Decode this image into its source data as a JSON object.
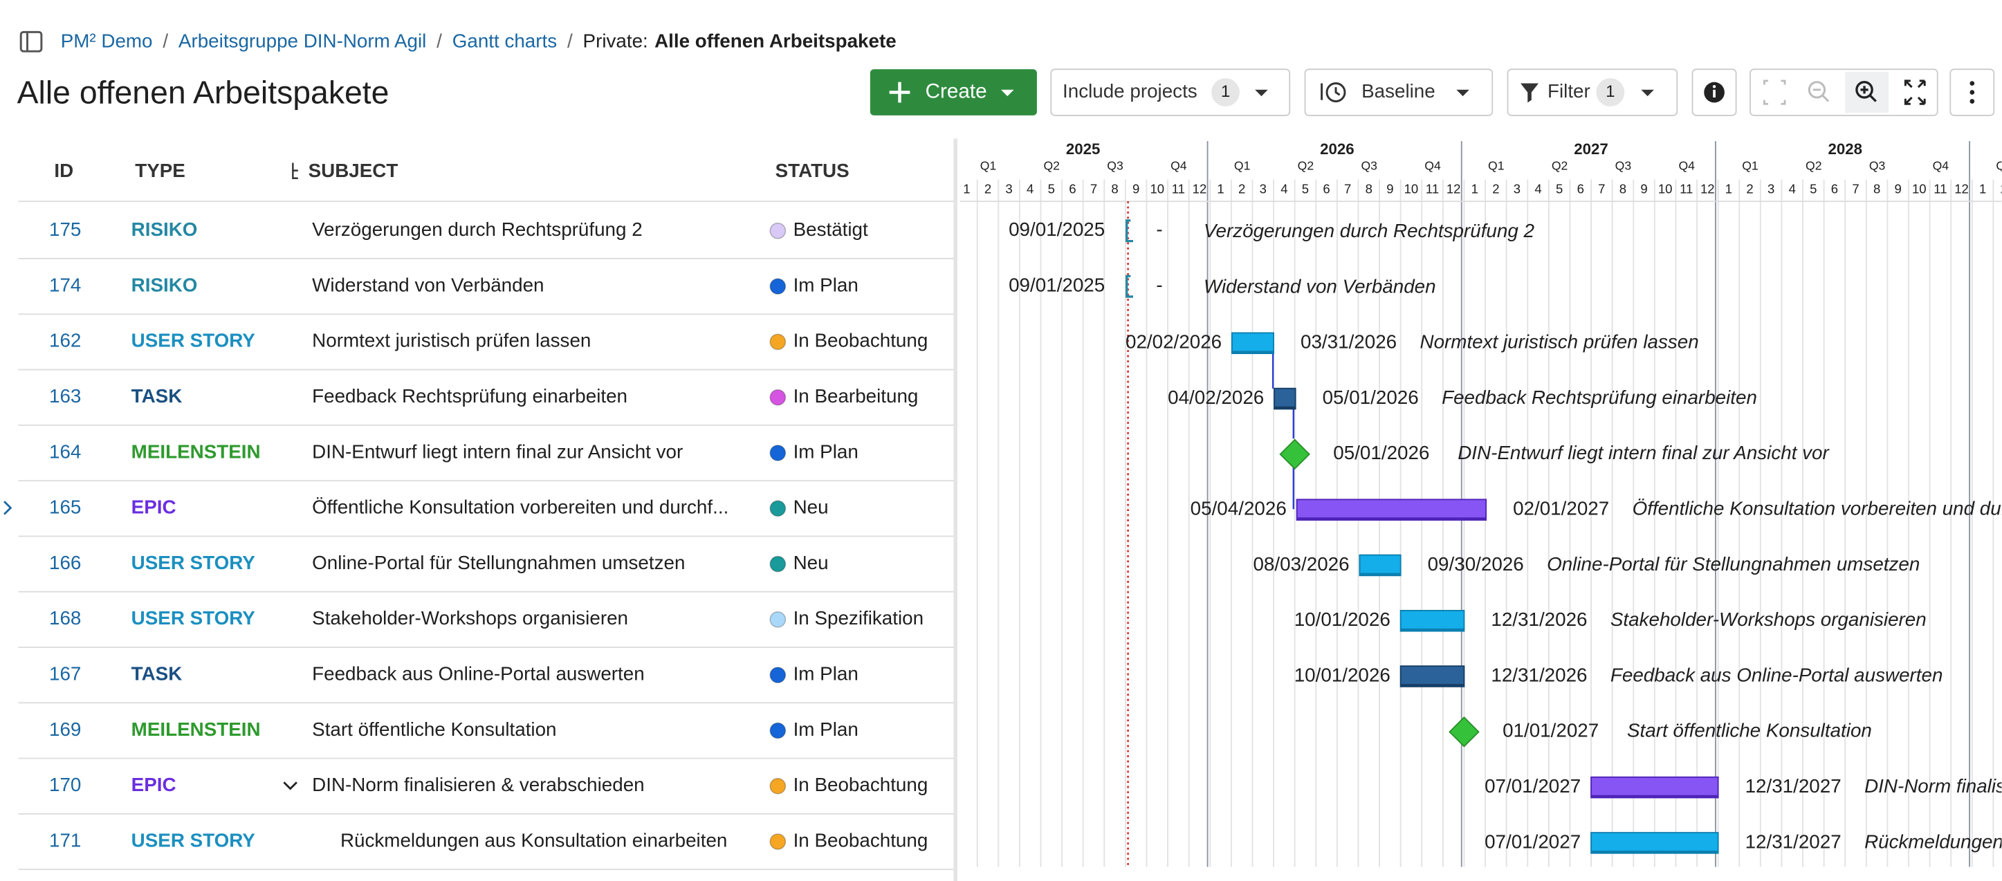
{
  "breadcrumb": [
    "PM² Demo",
    "Arbeitsgruppe DIN-Norm Agil",
    "Gantt charts"
  ],
  "breadcrumb_separator": "/",
  "breadcrumb_prefix": "Private:",
  "breadcrumb_current": "Alle offenen Arbeitspakete",
  "title": "Alle offenen Arbeitspakete",
  "toolbar": {
    "create": "Create",
    "include_projects": "Include projects",
    "include_count": "1",
    "baseline": "Baseline",
    "filter": "Filter",
    "filter_count": "1"
  },
  "columns": [
    "ID",
    "TYPE",
    "SUBJECT",
    "STATUS"
  ],
  "timeline": {
    "years": [
      "2025",
      "2026",
      "2027",
      "2028"
    ],
    "quarters": [
      "Q1",
      "Q2",
      "Q3",
      "Q4"
    ],
    "months": [
      "1",
      "2",
      "3",
      "4",
      "5",
      "6",
      "7",
      "8",
      "9",
      "10",
      "11",
      "12"
    ]
  },
  "rows": [
    {
      "id": "175",
      "type": "RISIKO",
      "type_color": "#2488a3",
      "subject": "Verzögerungen durch Rechtsprüfung 2",
      "status": "Bestätigt",
      "status_color": "#d8c9f6",
      "start": "09/01/2025",
      "end": "-"
    },
    {
      "id": "174",
      "type": "RISIKO",
      "type_color": "#2488a3",
      "subject": "Widerstand von Verbänden",
      "status": "Im Plan",
      "status_color": "#1565d8",
      "start": "09/01/2025",
      "end": "-"
    },
    {
      "id": "162",
      "type": "USER STORY",
      "type_color": "#1b8fc0",
      "subject": "Normtext juristisch prüfen lassen",
      "status": "In Beobachtung",
      "status_color": "#f5a623",
      "start": "02/02/2026",
      "end": "03/31/2026",
      "bar_color": "#14aeea"
    },
    {
      "id": "163",
      "type": "TASK",
      "type_color": "#1b4f82",
      "subject": "Feedback Rechtsprüfung einarbeiten",
      "status": "In Bearbeitung",
      "status_color": "#d654e2",
      "start": "04/02/2026",
      "end": "05/01/2026",
      "bar_color": "#2a6299"
    },
    {
      "id": "164",
      "type": "MEILENSTEIN",
      "type_color": "#2e9a2e",
      "subject": "DIN-Entwurf liegt intern final zur Ansicht vor",
      "status": "Im Plan",
      "status_color": "#1565d8",
      "date": "05/01/2026",
      "bar_color": "#35c23a"
    },
    {
      "id": "165",
      "type": "EPIC",
      "type_color": "#6a2ee0",
      "subject": "Öffentliche Konsultation vorbereiten und durchf...",
      "status": "Neu",
      "status_color": "#1a9a9a",
      "start": "05/04/2026",
      "end": "02/01/2027",
      "bar_color": "#8655f4"
    },
    {
      "id": "166",
      "type": "USER STORY",
      "type_color": "#1b8fc0",
      "subject": "Online-Portal für Stellungnahmen umsetzen",
      "status": "Neu",
      "status_color": "#1a9a9a",
      "start": "08/03/2026",
      "end": "09/30/2026",
      "bar_color": "#14aeea"
    },
    {
      "id": "168",
      "type": "USER STORY",
      "type_color": "#1b8fc0",
      "subject": "Stakeholder-Workshops organisieren",
      "status": "In Spezifikation",
      "status_color": "#a9d8f8",
      "start": "10/01/2026",
      "end": "12/31/2026",
      "bar_color": "#14aeea"
    },
    {
      "id": "167",
      "type": "TASK",
      "type_color": "#1b4f82",
      "subject": "Feedback aus Online-Portal auswerten",
      "status": "Im Plan",
      "status_color": "#1565d8",
      "start": "10/01/2026",
      "end": "12/31/2026",
      "bar_color": "#2a6299"
    },
    {
      "id": "169",
      "type": "MEILENSTEIN",
      "type_color": "#2e9a2e",
      "subject": "Start öffentliche Konsultation",
      "status": "Im Plan",
      "status_color": "#1565d8",
      "date": "01/01/2027",
      "bar_color": "#35c23a"
    },
    {
      "id": "170",
      "type": "EPIC",
      "type_color": "#6a2ee0",
      "subject": "DIN-Norm finalisieren & verabschieden",
      "status": "In Beobachtung",
      "status_color": "#f5a623",
      "start": "07/01/2027",
      "end": "12/31/2027",
      "bar_color": "#8655f4"
    },
    {
      "id": "171",
      "type": "USER STORY",
      "type_color": "#1b8fc0",
      "subject": "Rückmeldungen aus Konsultation einarbeiten",
      "status": "In Beobachtung",
      "status_color": "#f5a623",
      "start": "07/01/2027",
      "end": "12/31/2027",
      "bar_color": "#14aeea"
    }
  ]
}
